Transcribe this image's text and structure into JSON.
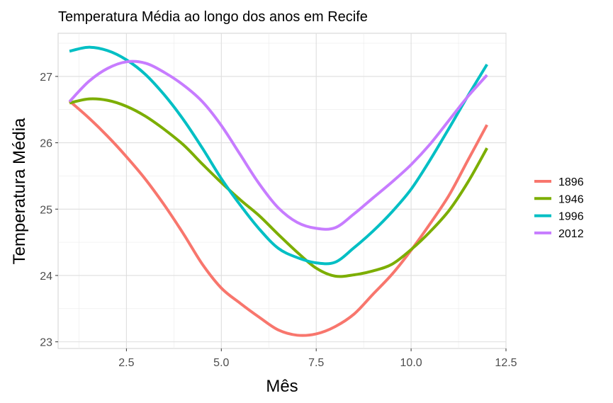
{
  "chart_data": {
    "type": "line",
    "title": "Temperatura Média ao longo dos anos em Recife",
    "xlabel": "Mês",
    "ylabel": "Temperatura Média",
    "xlim": [
      0.7,
      12.5
    ],
    "ylim": [
      22.9,
      27.65
    ],
    "x_ticks": [
      2.5,
      5.0,
      7.5,
      10.0,
      12.5
    ],
    "x_tick_labels": [
      "2.5",
      "5.0",
      "7.5",
      "10.0",
      "12.5"
    ],
    "y_ticks": [
      23,
      24,
      25,
      26,
      27
    ],
    "y_tick_labels": [
      "23",
      "24",
      "25",
      "26",
      "27"
    ],
    "grid": true,
    "legend_position": "right",
    "series": [
      {
        "name": "1896",
        "color": "#F8766D",
        "x": [
          1,
          1.5,
          2,
          2.5,
          3,
          3.5,
          4,
          4.5,
          5,
          5.5,
          6,
          6.5,
          7,
          7.5,
          8,
          8.5,
          9,
          9.5,
          10,
          10.5,
          11,
          11.5,
          12
        ],
        "y": [
          26.63,
          26.38,
          26.1,
          25.79,
          25.45,
          25.06,
          24.63,
          24.17,
          23.81,
          23.58,
          23.37,
          23.18,
          23.1,
          23.12,
          23.23,
          23.42,
          23.72,
          24.02,
          24.38,
          24.78,
          25.21,
          25.74,
          26.27
        ]
      },
      {
        "name": "1946",
        "color": "#7CAE00",
        "x": [
          1,
          1.5,
          2,
          2.5,
          3,
          3.5,
          4,
          4.5,
          5,
          5.5,
          6,
          6.5,
          7,
          7.5,
          8,
          8.5,
          9,
          9.5,
          10,
          10.5,
          11,
          11.5,
          12
        ],
        "y": [
          26.6,
          26.66,
          26.64,
          26.55,
          26.4,
          26.2,
          25.97,
          25.68,
          25.4,
          25.14,
          24.9,
          24.62,
          24.35,
          24.11,
          23.99,
          24.01,
          24.07,
          24.17,
          24.39,
          24.66,
          24.98,
          25.41,
          25.92
        ]
      },
      {
        "name": "1996",
        "color": "#00BFC4",
        "x": [
          1,
          1.5,
          2,
          2.5,
          3,
          3.5,
          4,
          4.5,
          5,
          5.5,
          6,
          6.5,
          7,
          7.5,
          8,
          8.5,
          9,
          9.5,
          10,
          10.5,
          11,
          11.5,
          12
        ],
        "y": [
          27.38,
          27.44,
          27.39,
          27.25,
          27.03,
          26.72,
          26.35,
          25.92,
          25.46,
          25.06,
          24.7,
          24.41,
          24.27,
          24.19,
          24.2,
          24.42,
          24.67,
          24.96,
          25.3,
          25.74,
          26.22,
          26.71,
          27.18
        ]
      },
      {
        "name": "2012",
        "color": "#C77CFF",
        "x": [
          1,
          1.5,
          2,
          2.5,
          3,
          3.5,
          4,
          4.5,
          5,
          5.5,
          6,
          6.5,
          7,
          7.5,
          8,
          8.5,
          9,
          9.5,
          10,
          10.5,
          11,
          11.5,
          12
        ],
        "y": [
          26.62,
          26.92,
          27.12,
          27.22,
          27.2,
          27.06,
          26.87,
          26.62,
          26.26,
          25.82,
          25.38,
          25.02,
          24.8,
          24.71,
          24.72,
          24.93,
          25.17,
          25.41,
          25.67,
          25.98,
          26.34,
          26.7,
          27.02
        ]
      }
    ]
  }
}
